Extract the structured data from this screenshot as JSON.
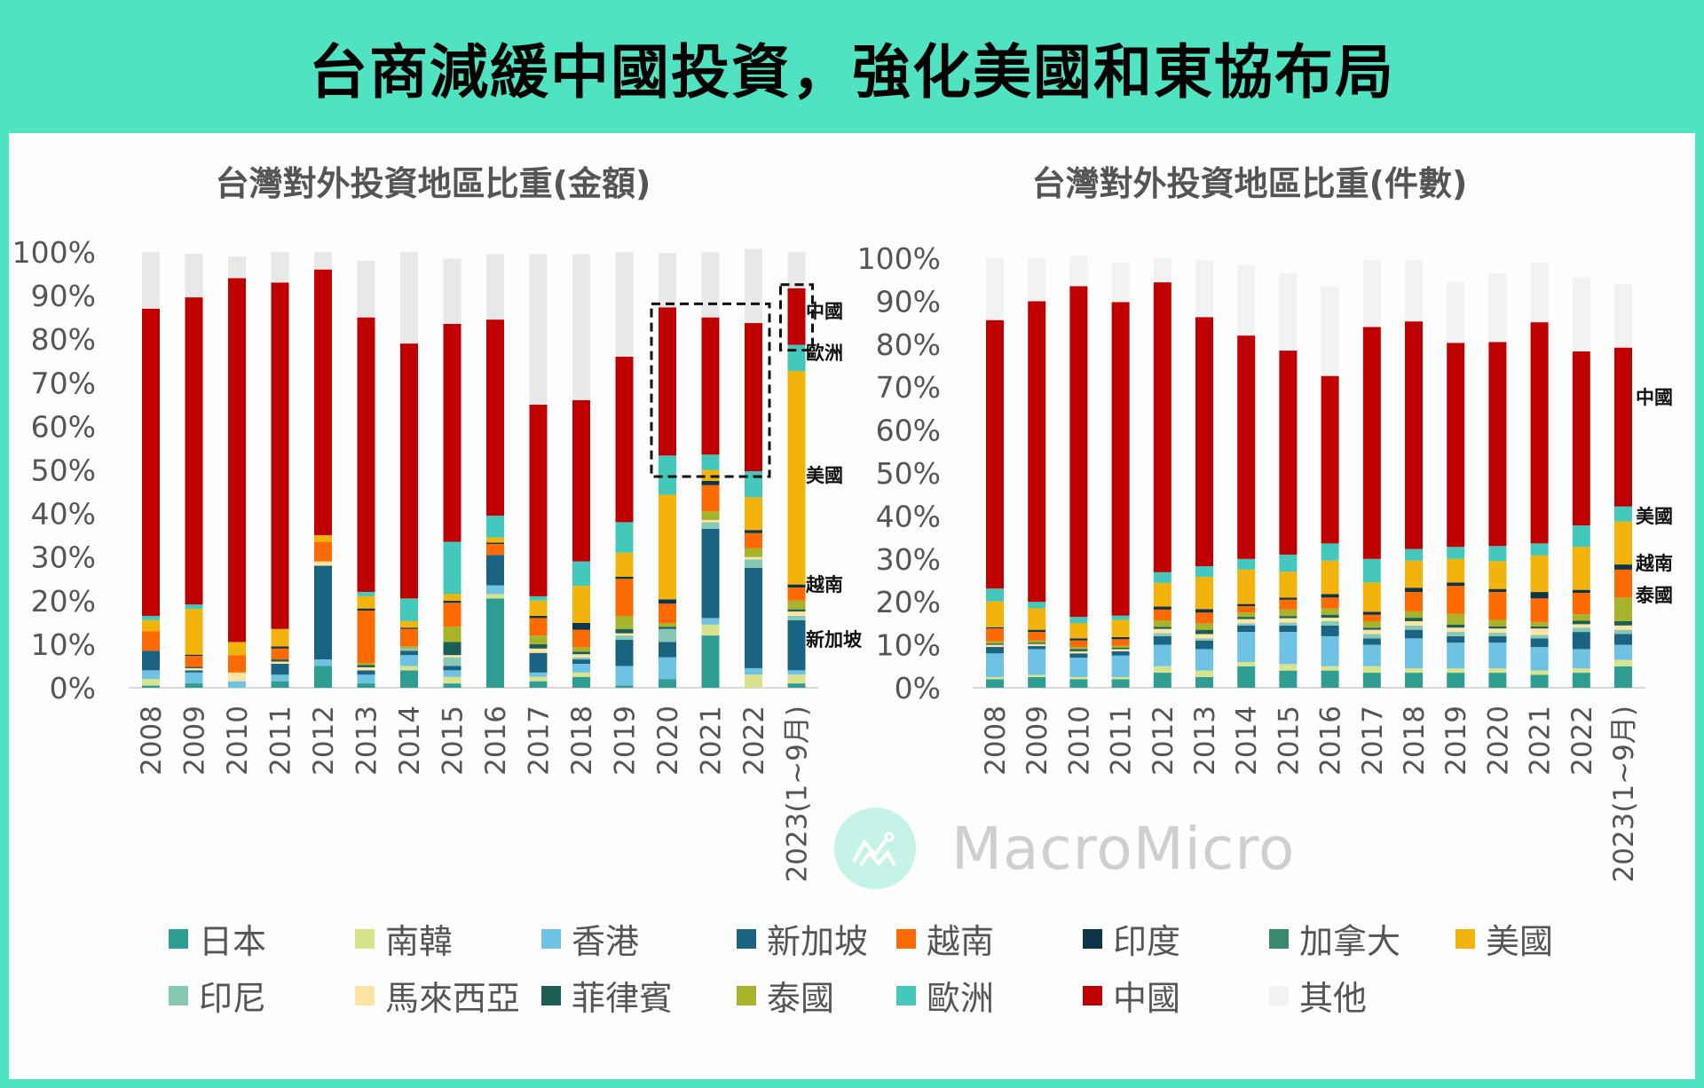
{
  "main_title": "台商減緩中國投資，強化美國和東協布局",
  "watermark": "MacroMicro",
  "chart_data": [
    {
      "type": "bar",
      "stacked": true,
      "title": "台灣對外投資地區比重(金額)",
      "xlabel": "",
      "ylabel": "",
      "ylim": [
        0,
        100
      ],
      "yticks": [
        "0%",
        "10%",
        "20%",
        "30%",
        "40%",
        "50%",
        "60%",
        "70%",
        "80%",
        "90%",
        "100%"
      ],
      "categories": [
        "2008",
        "2009",
        "2010",
        "2011",
        "2012",
        "2013",
        "2014",
        "2015",
        "2016",
        "2017",
        "2018",
        "2019",
        "2020",
        "2021",
        "2022",
        "2023(1~9月)"
      ],
      "series": [
        {
          "name": "日本",
          "color": "#2e9e93",
          "values": [
            0.5,
            1,
            0,
            1.5,
            5,
            1,
            4,
            1,
            20.5,
            1.5,
            2.5,
            0.5,
            2,
            12,
            0,
            1
          ]
        },
        {
          "name": "南韓",
          "color": "#d9e48a",
          "values": [
            1.5,
            0,
            0,
            0,
            0,
            0,
            1,
            1.5,
            1,
            1,
            1,
            0,
            0,
            2.5,
            3,
            2
          ]
        },
        {
          "name": "香港",
          "color": "#6ec3e4",
          "values": [
            2,
            2.5,
            1.5,
            1.5,
            1.5,
            2,
            2.5,
            1.5,
            2,
            1,
            2,
            4.5,
            5,
            1.5,
            1.5,
            1
          ]
        },
        {
          "name": "新加坡",
          "color": "#1a6382",
          "values": [
            4.5,
            0.5,
            0,
            2.5,
            21.5,
            1,
            1,
            1,
            7,
            4.5,
            1,
            6,
            3.5,
            20.5,
            23,
            11.5
          ]
        },
        {
          "name": "印尼",
          "color": "#86c9b4",
          "values": [
            0,
            0,
            0,
            0,
            0,
            0,
            0.5,
            2,
            0,
            0,
            0.5,
            1,
            3,
            1.5,
            2,
            1
          ]
        },
        {
          "name": "馬來西亞",
          "color": "#fde4a3",
          "values": [
            0,
            0.5,
            2,
            0.5,
            1,
            0.7,
            0,
            0.5,
            0,
            1,
            0.7,
            0.5,
            0,
            0.5,
            0.5,
            1
          ]
        },
        {
          "name": "菲律賓",
          "color": "#1b5e55",
          "values": [
            0,
            0.3,
            0,
            0.5,
            0,
            0.5,
            0,
            3,
            0,
            1,
            0.6,
            1,
            0.5,
            0,
            0,
            0.5
          ]
        },
        {
          "name": "泰國",
          "color": "#a8b32c",
          "values": [
            0,
            0,
            0,
            0,
            0,
            0.5,
            0.5,
            3.5,
            0,
            2,
            1,
            3,
            0.8,
            2,
            2,
            2
          ]
        },
        {
          "name": "越南",
          "color": "#ff6a00",
          "values": [
            4.5,
            2.5,
            4,
            2.5,
            4.5,
            12,
            4,
            5.5,
            2.5,
            4,
            4,
            8.5,
            4.5,
            6,
            3.5,
            3
          ]
        },
        {
          "name": "印度",
          "color": "#0e3547",
          "values": [
            0,
            0.3,
            0,
            0.5,
            0,
            0.5,
            0.3,
            0.5,
            0.3,
            0.5,
            1.6,
            0.5,
            1,
            1,
            0.7,
            0.7
          ]
        },
        {
          "name": "加拿大",
          "color": "#3a8a72",
          "values": [
            0,
            0,
            0,
            0,
            0,
            0,
            0,
            0,
            0,
            0,
            0,
            0,
            0,
            0,
            0,
            0
          ]
        },
        {
          "name": "美國",
          "color": "#f2b40a",
          "values": [
            2.5,
            10.5,
            3,
            4,
            1.5,
            2.8,
            1.5,
            1.5,
            1.2,
            3.5,
            8.5,
            5.5,
            24,
            2.5,
            7.5,
            49
          ]
        },
        {
          "name": "歐洲",
          "color": "#44c8bb",
          "values": [
            1,
            1,
            0,
            0,
            0,
            1,
            5.2,
            12,
            5,
            1,
            5.6,
            7,
            9,
            3.5,
            6,
            6
          ]
        },
        {
          "name": "中國",
          "color": "#c00000",
          "values": [
            70.5,
            70.5,
            83.5,
            79.5,
            61,
            63,
            58.5,
            50,
            45,
            44,
            37,
            38,
            34,
            31.5,
            34,
            13
          ]
        },
        {
          "name": "其他",
          "color": "#e8e8e8",
          "values": [
            13,
            10,
            5,
            7,
            4,
            13,
            21,
            15,
            15,
            34.5,
            33.5,
            24,
            12.5,
            15,
            17,
            8.3
          ]
        }
      ],
      "annotations": [
        "中國",
        "歐洲",
        "美國",
        "越南",
        "新加坡"
      ],
      "highlight_boxes": [
        [
          "2020",
          "2022"
        ],
        [
          "2023(1~9月)"
        ]
      ]
    },
    {
      "type": "bar",
      "stacked": true,
      "title": "台灣對外投資地區比重(件數)",
      "xlabel": "",
      "ylabel": "",
      "ylim": [
        0,
        100
      ],
      "yticks": [
        "0%",
        "10%",
        "20%",
        "30%",
        "40%",
        "50%",
        "60%",
        "70%",
        "80%",
        "90%",
        "100%"
      ],
      "categories": [
        "2008",
        "2009",
        "2010",
        "2011",
        "2012",
        "2013",
        "2014",
        "2015",
        "2016",
        "2017",
        "2018",
        "2019",
        "2020",
        "2021",
        "2022",
        "2023(1~9月)"
      ],
      "series": [
        {
          "name": "日本",
          "color": "#2e9e93",
          "values": [
            2,
            2.5,
            2,
            2,
            3.5,
            2.5,
            5,
            4,
            4,
            3.5,
            3.5,
            3.5,
            3.5,
            3,
            3.5,
            5
          ]
        },
        {
          "name": "南韓",
          "color": "#d9e48a",
          "values": [
            0.5,
            0.5,
            0.5,
            0.5,
            1.5,
            1.5,
            1,
            1.5,
            1,
            1.5,
            1,
            1,
            1,
            1,
            1,
            1.5
          ]
        },
        {
          "name": "香港",
          "color": "#6ec3e4",
          "values": [
            5.5,
            6,
            4.5,
            5,
            5,
            5,
            7,
            7.5,
            7,
            5,
            7,
            6,
            6,
            5.5,
            4.5,
            3.5
          ]
        },
        {
          "name": "新加坡",
          "color": "#1a6382",
          "values": [
            1.5,
            0.7,
            1,
            1,
            2,
            2,
            1.5,
            1.5,
            2.5,
            1.5,
            2,
            1.5,
            1.5,
            2,
            4,
            2.5
          ]
        },
        {
          "name": "印尼",
          "color": "#86c9b4",
          "values": [
            0,
            0,
            0,
            0,
            0.7,
            0.5,
            0.5,
            0.7,
            1,
            1,
            1,
            1,
            0.8,
            0.8,
            1,
            1
          ]
        },
        {
          "name": "馬來西亞",
          "color": "#fde4a3",
          "values": [
            0.5,
            0.5,
            0.5,
            0.5,
            1,
            1,
            1,
            1,
            0.8,
            1,
            1,
            1,
            1,
            1.5,
            0.8,
            1
          ]
        },
        {
          "name": "菲律賓",
          "color": "#1b5e55",
          "values": [
            0.3,
            0.3,
            0.5,
            0.3,
            0.5,
            1,
            0.5,
            0.5,
            0.7,
            0.5,
            0.8,
            0.7,
            0.5,
            0.5,
            0.8,
            1
          ]
        },
        {
          "name": "泰國",
          "color": "#a8b32c",
          "values": [
            0.5,
            0.5,
            0.5,
            0.5,
            1.5,
            1.5,
            1,
            1.5,
            1.5,
            1.5,
            1.5,
            2.5,
            1.5,
            1,
            1.5,
            5.5
          ]
        },
        {
          "name": "越南",
          "color": "#ff6a00",
          "values": [
            3,
            2,
            1.5,
            1.5,
            2.5,
            2.5,
            1.5,
            2.3,
            2.5,
            1.5,
            4.5,
            6.5,
            6.5,
            5.5,
            5,
            6.5
          ]
        },
        {
          "name": "印度",
          "color": "#0e3547",
          "values": [
            0.3,
            0.5,
            0.5,
            0.5,
            0.7,
            0.8,
            0.5,
            0.5,
            0.8,
            0.7,
            1,
            0.8,
            0.7,
            1.5,
            0.7,
            1.2
          ]
        },
        {
          "name": "加拿大",
          "color": "#3a8a72",
          "values": [
            0,
            0,
            0,
            0,
            0,
            0,
            0,
            0,
            0,
            0,
            0,
            0,
            0,
            0,
            0,
            0
          ]
        },
        {
          "name": "美國",
          "color": "#f2b40a",
          "values": [
            6,
            5,
            3.5,
            4,
            5.5,
            7.5,
            8,
            6,
            7.8,
            6.8,
            6.3,
            5.5,
            6.5,
            8.5,
            10,
            10
          ]
        },
        {
          "name": "歐洲",
          "color": "#44c8bb",
          "values": [
            3,
            1.5,
            1.5,
            1,
            2.5,
            2.5,
            2.5,
            4,
            4,
            5.5,
            2.7,
            2.8,
            3.5,
            2.8,
            5,
            3.5
          ]
        },
        {
          "name": "中國",
          "color": "#c00000",
          "values": [
            62.5,
            70,
            77,
            73,
            67.5,
            58,
            52,
            47.5,
            39,
            54,
            53,
            47.5,
            47.5,
            51.5,
            40.5,
            37
          ]
        },
        {
          "name": "其他",
          "color": "#f2f2f2",
          "values": [
            14.4,
            10,
            7,
            9.2,
            5.6,
            13.2,
            16.5,
            18,
            20.9,
            15.5,
            14.2,
            14.2,
            16,
            13.9,
            17.2,
            14.8
          ]
        }
      ],
      "annotations": [
        "中國",
        "美國",
        "越南",
        "泰國"
      ]
    }
  ],
  "legend": [
    "日本",
    "南韓",
    "香港",
    "新加坡",
    "越南",
    "印度",
    "加拿大",
    "美國",
    "印尼",
    "馬來西亞",
    "菲律賓",
    "泰國",
    "歐洲",
    "中國",
    "其他"
  ],
  "legend_colors": [
    "#2e9e93",
    "#d9e48a",
    "#6ec3e4",
    "#1a6382",
    "#ff6a00",
    "#0e3547",
    "#3a8a72",
    "#f2b40a",
    "#86c9b4",
    "#fde4a3",
    "#1b5e55",
    "#a8b32c",
    "#44c8bb",
    "#c00000",
    "#f2f2f2"
  ]
}
